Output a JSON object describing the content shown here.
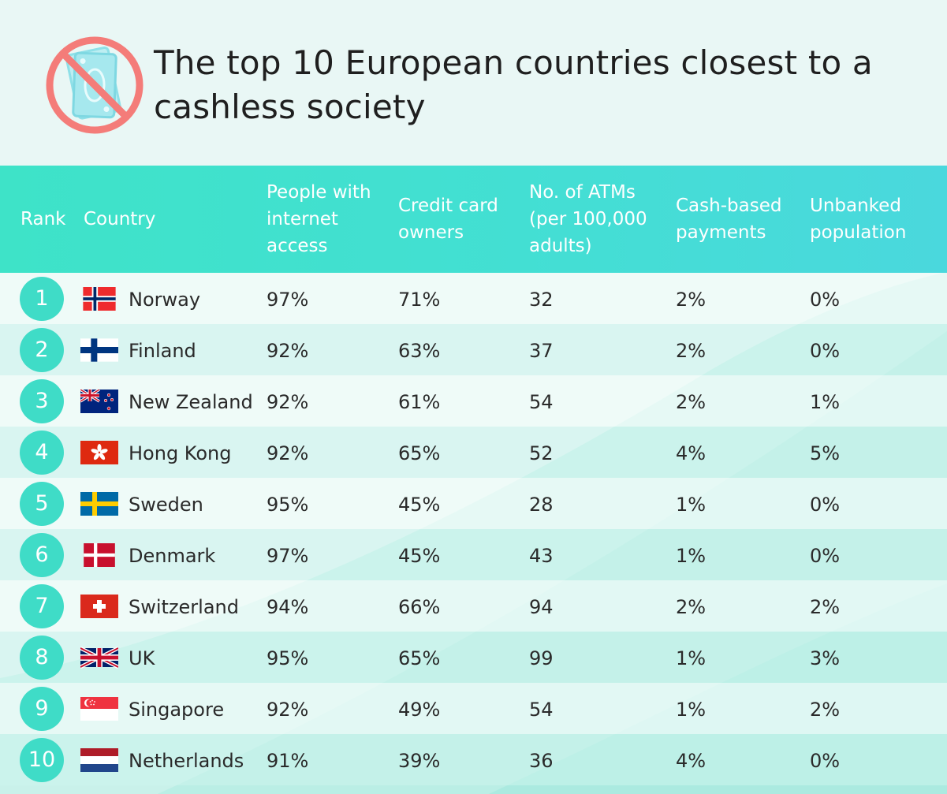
{
  "title": "The top 10 European countries closest to a cashless society",
  "colors": {
    "header_teal": "#3ee3c8",
    "badge_teal": "#3fdcc7",
    "logo_red": "#f47c79",
    "note_blue": "#8fe0e8",
    "background": "#e9f7f5"
  },
  "icons": {
    "logo": "no-cash-icon"
  },
  "columns": {
    "rank": "Rank",
    "country": "Country",
    "internet": "People with\ninternet\naccess",
    "credit": "Credit card\nowners",
    "atms": "No. of ATMs\n(per 100,000\nadults)",
    "cash": "Cash-based\npayments",
    "unbanked": "Unbanked\npopulation"
  },
  "rows": [
    {
      "rank": "1",
      "country": "Norway",
      "flag": "norway-flag-icon",
      "internet": "97%",
      "credit": "71%",
      "atms": "32",
      "cash": "2%",
      "unbanked": "0%"
    },
    {
      "rank": "2",
      "country": "Finland",
      "flag": "finland-flag-icon",
      "internet": "92%",
      "credit": "63%",
      "atms": "37",
      "cash": "2%",
      "unbanked": "0%"
    },
    {
      "rank": "3",
      "country": "New Zealand",
      "flag": "new-zealand-flag-icon",
      "internet": "92%",
      "credit": "61%",
      "atms": "54",
      "cash": "2%",
      "unbanked": "1%"
    },
    {
      "rank": "4",
      "country": "Hong Kong",
      "flag": "hong-kong-flag-icon",
      "internet": "92%",
      "credit": "65%",
      "atms": "52",
      "cash": "4%",
      "unbanked": "5%"
    },
    {
      "rank": "5",
      "country": "Sweden",
      "flag": "sweden-flag-icon",
      "internet": "95%",
      "credit": "45%",
      "atms": "28",
      "cash": "1%",
      "unbanked": "0%"
    },
    {
      "rank": "6",
      "country": "Denmark",
      "flag": "denmark-flag-icon",
      "internet": "97%",
      "credit": "45%",
      "atms": "43",
      "cash": "1%",
      "unbanked": "0%"
    },
    {
      "rank": "7",
      "country": "Switzerland",
      "flag": "switzerland-flag-icon",
      "internet": "94%",
      "credit": "66%",
      "atms": "94",
      "cash": "2%",
      "unbanked": "2%"
    },
    {
      "rank": "8",
      "country": "UK",
      "flag": "uk-flag-icon",
      "internet": "95%",
      "credit": "65%",
      "atms": "99",
      "cash": "1%",
      "unbanked": "3%"
    },
    {
      "rank": "9",
      "country": "Singapore",
      "flag": "singapore-flag-icon",
      "internet": "92%",
      "credit": "49%",
      "atms": "54",
      "cash": "1%",
      "unbanked": "2%"
    },
    {
      "rank": "10",
      "country": "Netherlands",
      "flag": "netherlands-flag-icon",
      "internet": "91%",
      "credit": "39%",
      "atms": "36",
      "cash": "4%",
      "unbanked": "0%"
    }
  ]
}
